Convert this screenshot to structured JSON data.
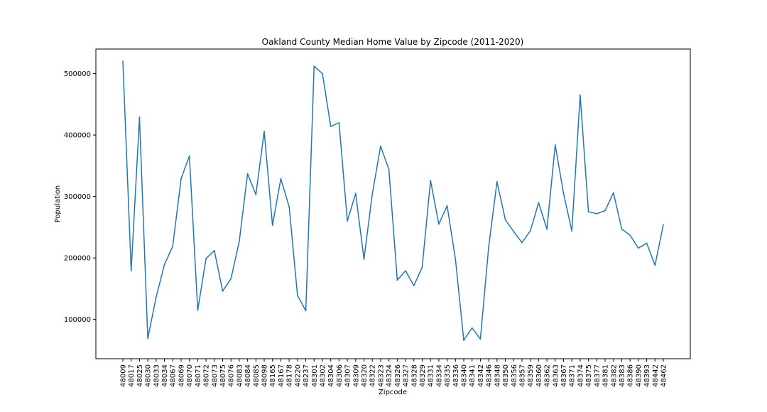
{
  "chart_data": {
    "type": "line",
    "title": "Oakland County Median Home Value by Zipcode (2011-2020)",
    "xlabel": "Zipcode",
    "ylabel": "Population",
    "ylim": [
      36000,
      540000
    ],
    "yticks": [
      100000,
      200000,
      300000,
      400000,
      500000
    ],
    "grid": false,
    "line_color": "#1f77b4",
    "categories": [
      "48009",
      "48017",
      "48025",
      "48030",
      "48033",
      "48034",
      "48067",
      "48069",
      "48070",
      "48071",
      "48072",
      "48073",
      "48075",
      "48076",
      "48083",
      "48084",
      "48085",
      "48098",
      "48165",
      "48167",
      "48178",
      "48220",
      "48237",
      "48301",
      "48302",
      "48304",
      "48306",
      "48307",
      "48309",
      "48320",
      "48322",
      "48323",
      "48324",
      "48326",
      "48327",
      "48328",
      "48329",
      "48331",
      "48334",
      "48335",
      "48336",
      "48340",
      "48341",
      "48342",
      "48346",
      "48348",
      "48350",
      "48356",
      "48357",
      "48359",
      "48360",
      "48362",
      "48363",
      "48367",
      "48371",
      "48374",
      "48375",
      "48377",
      "48381",
      "48382",
      "48383",
      "48386",
      "48390",
      "48393",
      "48442",
      "48462"
    ],
    "values": [
      520000,
      179000,
      429000,
      69000,
      136000,
      189000,
      219000,
      329000,
      366000,
      115000,
      199000,
      212000,
      146000,
      166000,
      227000,
      337000,
      303000,
      406000,
      253000,
      329000,
      283000,
      139000,
      114000,
      512000,
      500000,
      414000,
      420000,
      260000,
      305000,
      198000,
      304000,
      382000,
      344000,
      164000,
      179000,
      155000,
      185000,
      326000,
      255000,
      285000,
      198000,
      66000,
      86000,
      68000,
      218000,
      324000,
      262000,
      243000,
      225000,
      244000,
      290000,
      247000,
      384000,
      305000,
      244000,
      465000,
      275000,
      272000,
      277000,
      306000,
      247000,
      237000,
      216000,
      224000,
      188000,
      254000
    ]
  }
}
